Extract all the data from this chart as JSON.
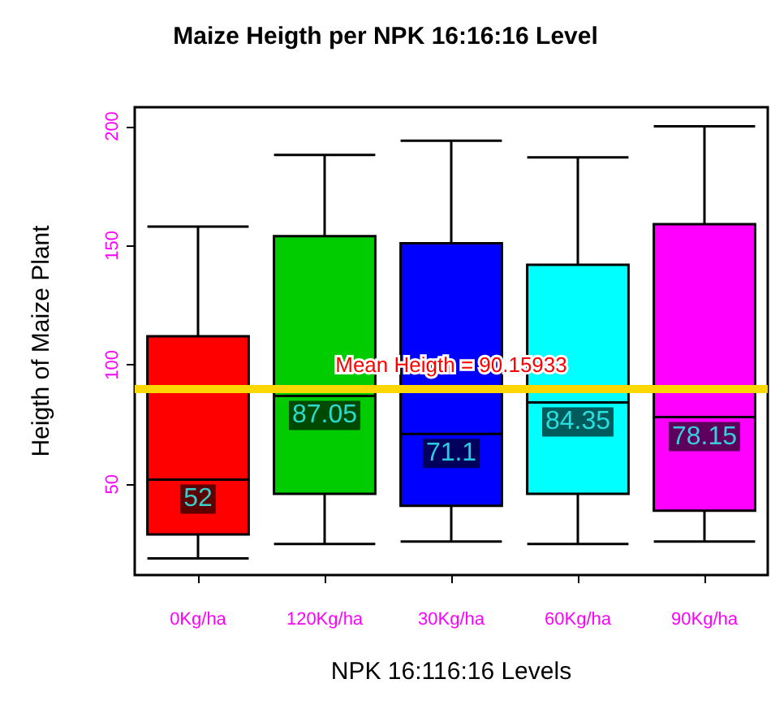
{
  "chart_data": {
    "type": "box",
    "title": "Maize Heigth per NPK 16:16:16 Level",
    "xlabel": "NPK 16:116:16 Levels",
    "ylabel": "Heigth of Maize Plant",
    "categories": [
      "0Kg/ha",
      "120Kg/ha",
      "30Kg/ha",
      "60Kg/ha",
      "90Kg/ha"
    ],
    "boxes": [
      {
        "low": 19,
        "q1": 29,
        "median": 52,
        "q3": 112,
        "high": 158
      },
      {
        "low": 25,
        "q1": 46,
        "median": 87.05,
        "q3": 154,
        "high": 188
      },
      {
        "low": 26,
        "q1": 41,
        "median": 71.1,
        "q3": 151,
        "high": 194
      },
      {
        "low": 25,
        "q1": 46,
        "median": 84.35,
        "q3": 142,
        "high": 187
      },
      {
        "low": 26,
        "q1": 39,
        "median": 78.15,
        "q3": 159,
        "high": 200
      }
    ],
    "colors": [
      "#ff0000",
      "#00cc00",
      "#0000ff",
      "#00ffff",
      "#ff00ff"
    ],
    "annotations": [
      {
        "text": "52",
        "x": "0Kg/ha",
        "y": 52
      },
      {
        "text": "87.05",
        "x": "120Kg/ha",
        "y": 87.05
      },
      {
        "text": "71.1",
        "x": "30Kg/ha",
        "y": 71.1
      },
      {
        "text": "84.35",
        "x": "60Kg/ha",
        "y": 84.35
      },
      {
        "text": "78.15",
        "x": "90Kg/ha",
        "y": 78.15
      }
    ],
    "ref_lines": [
      {
        "axis": "y",
        "value": 90.15933,
        "label": "Mean Heigth = 90.15933",
        "color": "#ffd700"
      }
    ],
    "ylim": [
      12,
      208
    ],
    "yticks": [
      50,
      100,
      150,
      200
    ],
    "grid": false
  }
}
